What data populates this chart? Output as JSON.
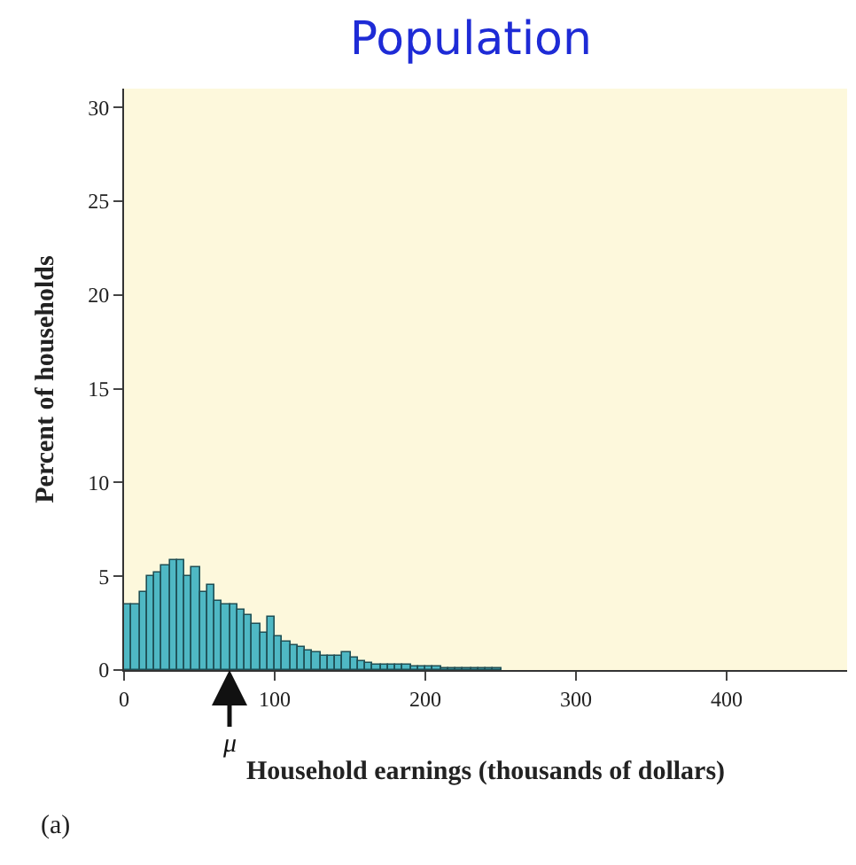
{
  "chart_data": {
    "type": "histogram",
    "title": "Population",
    "xlabel": "Household earnings (thousands of dollars)",
    "ylabel": "Percent of households",
    "bins": [
      0,
      5,
      10,
      15,
      20,
      25,
      30,
      35,
      40,
      45,
      50,
      55,
      60,
      65,
      70,
      75,
      80,
      85,
      90,
      95,
      100,
      105,
      110,
      115,
      120,
      125,
      130,
      135,
      140,
      145,
      150,
      155,
      160,
      165,
      170,
      175,
      180,
      185,
      190,
      195,
      200,
      205,
      210,
      215,
      220,
      225,
      230,
      235,
      240,
      245,
      250
    ],
    "values": [
      3.5,
      3.5,
      4.2,
      5.0,
      5.2,
      5.6,
      5.9,
      5.9,
      5.0,
      5.5,
      4.2,
      4.5,
      3.7,
      3.5,
      3.5,
      3.2,
      2.9,
      2.5,
      2.0,
      2.8,
      1.8,
      1.5,
      1.3,
      1.2,
      1.0,
      0.9,
      0.8,
      0.8,
      0.8,
      0.9,
      0.7,
      0.5,
      0.4,
      0.3,
      0.3,
      0.3,
      0.25,
      0.25,
      0.2,
      0.2,
      0.15,
      0.15,
      0.1,
      0.1,
      0.1,
      0.1,
      0.1,
      0.1,
      0.05,
      0.05
    ],
    "color": "#4fb8c4",
    "xlim": [
      0,
      480
    ],
    "xticks": [
      0,
      100,
      200,
      300,
      400
    ],
    "ylim": [
      0,
      31
    ],
    "yticks": [
      0,
      5,
      10,
      15,
      20,
      25,
      30
    ],
    "annotations": [
      {
        "text": "μ",
        "x": 70,
        "y": 0
      },
      "(a)"
    ]
  }
}
